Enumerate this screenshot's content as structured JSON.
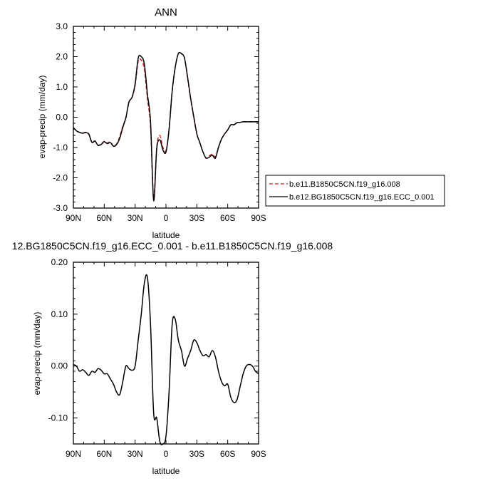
{
  "chart_data": [
    {
      "type": "line",
      "title": "ANN",
      "xlabel": "latitude",
      "ylabel": "evap-precip (mm/day)",
      "xlim": [
        90,
        -90
      ],
      "ylim": [
        -3.0,
        3.0
      ],
      "x_ticks": [
        90,
        60,
        30,
        0,
        -30,
        -60,
        -90
      ],
      "x_tick_labels": [
        "90N",
        "60N",
        "30N",
        "0",
        "30S",
        "60S",
        "90S"
      ],
      "y_ticks": [
        -3,
        -2,
        -1,
        0,
        1,
        2,
        3
      ],
      "y_tick_labels": [
        "-3.0",
        "-2.0",
        "-1.0",
        "0.0",
        "1.0",
        "2.0",
        "3.0"
      ],
      "legend_position": "outside-right-bottom",
      "series": [
        {
          "name": "b.e11.B1850C5CN.f19_g16.008",
          "color": "#d42020",
          "dash": "dashed",
          "x": [
            90,
            87,
            84,
            81,
            78,
            75,
            72,
            69,
            66,
            63,
            60,
            57,
            54,
            51,
            48,
            45,
            42,
            39,
            36,
            33,
            30,
            27,
            24,
            21,
            18,
            15,
            12,
            9,
            6,
            3,
            0,
            -3,
            -6,
            -9,
            -12,
            -15,
            -18,
            -21,
            -24,
            -27,
            -30,
            -33,
            -36,
            -39,
            -42,
            -45,
            -48,
            -51,
            -54,
            -57,
            -60,
            -63,
            -66,
            -69,
            -72,
            -75,
            -78,
            -81,
            -84,
            -87,
            -90
          ],
          "y": [
            -0.34,
            -0.45,
            -0.5,
            -0.52,
            -0.5,
            -0.55,
            -0.82,
            -0.78,
            -0.92,
            -0.88,
            -0.8,
            -0.85,
            -0.82,
            -0.95,
            -0.88,
            -0.65,
            -0.3,
            -0.02,
            0.5,
            0.65,
            1.05,
            1.85,
            1.88,
            1.58,
            0.6,
            -0.3,
            -2.68,
            -1.0,
            -0.6,
            -1.0,
            -1.1,
            -0.4,
            0.85,
            1.65,
            2.1,
            2.1,
            1.95,
            1.3,
            0.6,
            0.0,
            -0.55,
            -0.85,
            -1.15,
            -1.35,
            -1.28,
            -1.22,
            -1.3,
            -1.0,
            -0.72,
            -0.55,
            -0.42,
            -0.25,
            -0.25,
            -0.18,
            -0.17,
            -0.15,
            -0.15,
            -0.15,
            -0.15,
            -0.15,
            -0.15
          ]
        },
        {
          "name": "b.e12.BG1850C5CN.f19_g16.ECC_0.001",
          "color": "#000000",
          "dash": "solid",
          "x": [
            90,
            87,
            84,
            81,
            78,
            75,
            72,
            69,
            66,
            63,
            60,
            57,
            54,
            51,
            48,
            45,
            42,
            39,
            36,
            33,
            30,
            27,
            24,
            21,
            18,
            15,
            12,
            9,
            6,
            3,
            0,
            -3,
            -6,
            -9,
            -12,
            -15,
            -18,
            -21,
            -24,
            -27,
            -30,
            -33,
            -36,
            -39,
            -42,
            -45,
            -48,
            -51,
            -54,
            -57,
            -60,
            -63,
            -66,
            -69,
            -72,
            -75,
            -78,
            -81,
            -84,
            -87,
            -90
          ],
          "y": [
            -0.34,
            -0.45,
            -0.5,
            -0.53,
            -0.51,
            -0.56,
            -0.83,
            -0.79,
            -0.93,
            -0.9,
            -0.81,
            -0.87,
            -0.84,
            -0.96,
            -0.9,
            -0.7,
            -0.34,
            -0.02,
            0.5,
            0.66,
            1.1,
            1.95,
            2.0,
            1.75,
            0.75,
            -0.15,
            -2.75,
            -1.05,
            -0.75,
            -1.08,
            -1.15,
            -0.4,
            0.85,
            1.65,
            2.1,
            2.1,
            1.95,
            1.32,
            0.62,
            0.02,
            -0.55,
            -0.85,
            -1.15,
            -1.35,
            -1.32,
            -1.25,
            -1.35,
            -1.0,
            -0.72,
            -0.55,
            -0.42,
            -0.25,
            -0.25,
            -0.18,
            -0.17,
            -0.15,
            -0.15,
            -0.15,
            -0.15,
            -0.15,
            -0.15
          ]
        }
      ]
    },
    {
      "type": "line",
      "title": "12.BG1850C5CN.f19_g16.ECC_0.001 - b.e11.B1850C5CN.f19_g16.008",
      "xlabel": "latitude",
      "ylabel": "evap-precip (mm/day)",
      "xlim": [
        90,
        -90
      ],
      "ylim": [
        -0.15,
        0.2
      ],
      "x_ticks": [
        90,
        60,
        30,
        0,
        -30,
        -60,
        -90
      ],
      "x_tick_labels": [
        "90N",
        "60N",
        "30N",
        "0",
        "30S",
        "60S",
        "90S"
      ],
      "y_ticks": [
        -0.1,
        0.0,
        0.1,
        0.2
      ],
      "y_tick_labels": [
        "-0.10",
        "0.00",
        "0.10",
        "0.20"
      ],
      "series": [
        {
          "color": "#000000",
          "dash": "solid",
          "x": [
            90,
            87,
            84,
            81,
            78,
            75,
            72,
            69,
            66,
            63,
            60,
            57,
            54,
            51,
            48,
            45,
            42,
            39,
            36,
            33,
            30,
            27,
            24,
            21,
            18,
            15,
            12,
            9,
            6,
            3,
            0,
            -3,
            -6,
            -9,
            -12,
            -15,
            -18,
            -21,
            -24,
            -27,
            -30,
            -33,
            -36,
            -39,
            -42,
            -45,
            -48,
            -51,
            -54,
            -57,
            -60,
            -63,
            -66,
            -69,
            -72,
            -75,
            -78,
            -81,
            -84,
            -87,
            -90
          ],
          "y": [
            0.003,
            0.0,
            -0.01,
            -0.007,
            -0.012,
            -0.018,
            -0.01,
            -0.012,
            -0.005,
            -0.008,
            -0.015,
            -0.015,
            -0.025,
            -0.035,
            -0.05,
            -0.055,
            -0.03,
            0.0,
            -0.005,
            -0.008,
            0.0,
            0.05,
            0.1,
            0.16,
            0.17,
            0.08,
            -0.09,
            -0.1,
            -0.145,
            -0.15,
            -0.135,
            -0.05,
            0.08,
            0.09,
            0.05,
            0.03,
            0.0,
            0.015,
            0.03,
            0.05,
            0.045,
            0.03,
            0.02,
            0.022,
            0.018,
            0.03,
            0.018,
            -0.01,
            -0.03,
            -0.038,
            -0.035,
            -0.06,
            -0.07,
            -0.065,
            -0.04,
            -0.015,
            0.0,
            0.003,
            0.0,
            -0.01,
            -0.015
          ]
        }
      ]
    }
  ]
}
